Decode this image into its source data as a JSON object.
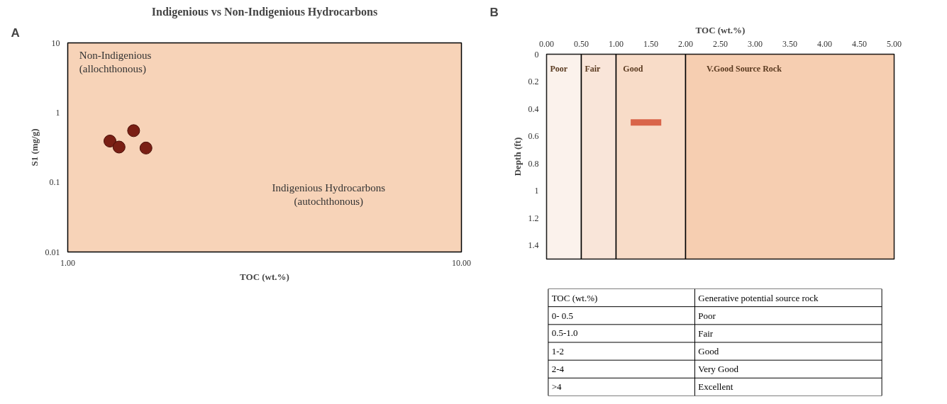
{
  "chart_data": [
    {
      "type": "scatter",
      "title": "Indigenious vs Non-Indigenious Hydrocarbons",
      "xlabel": "TOC (wt.%)",
      "ylabel": "S1 (mg/g)",
      "log": "xy",
      "marker": "circle",
      "grid": false,
      "annotations": [
        "A",
        "Non-Indigenious\n(allochthonous)",
        "Indigenious Hydrocarbons\n(autochthonous)"
      ],
      "xlim": [
        1,
        10
      ],
      "xticks": [
        {
          "value": 1,
          "label": "1.00"
        },
        {
          "value": 10,
          "label": "10.00"
        }
      ],
      "ylim": [
        0.01,
        10
      ],
      "yticks": [
        0.01,
        0.1,
        1,
        10
      ],
      "series": [
        {
          "color": "#7a1f14",
          "x": [
            1.28,
            1.35,
            1.47,
            1.58
          ],
          "values": [
            0.39,
            0.32,
            0.55,
            0.31
          ]
        }
      ]
    },
    {
      "type": "line",
      "xlabel": "TOC (wt.%)",
      "ylabel": "Depth (ft)",
      "grid": false,
      "line_style": "solid",
      "annotations": [
        "B"
      ],
      "xlim": [
        0,
        5
      ],
      "xticks": [
        {
          "value": 0,
          "label": "0.00"
        },
        {
          "value": 0.5,
          "label": "0.50"
        },
        {
          "value": 1,
          "label": "1.00"
        },
        {
          "value": 1.5,
          "label": "1.50"
        },
        {
          "value": 2,
          "label": "2.00"
        },
        {
          "value": 2.5,
          "label": "2.50"
        },
        {
          "value": 3,
          "label": "3.00"
        },
        {
          "value": 3.5,
          "label": "3.50"
        },
        {
          "value": 4,
          "label": "4.00"
        },
        {
          "value": 4.5,
          "label": "4.50"
        },
        {
          "value": 5,
          "label": "5.00"
        }
      ],
      "ylim": [
        1.5,
        0
      ],
      "yticks": [
        0,
        0.2,
        0.4,
        0.6,
        0.8,
        1,
        1.2,
        1.4
      ],
      "bands": [
        {
          "axis": "x",
          "from": 0,
          "to": 0.5,
          "label": "Poor",
          "color": "#fbf2ec"
        },
        {
          "axis": "x",
          "from": 0.5,
          "to": 1,
          "label": "Fair",
          "color": "#f9e5d9"
        },
        {
          "axis": "x",
          "from": 1,
          "to": 2,
          "label": "Good",
          "color": "#f8dcc8"
        },
        {
          "axis": "x",
          "from": 2,
          "to": 5,
          "label": "V.Good  Source Rock",
          "color": "#f6ceb1"
        }
      ],
      "series": [
        {
          "color": "#d9654a",
          "x": [
            1.21,
            1.65
          ],
          "values": [
            0.5,
            0.5
          ]
        }
      ]
    },
    {
      "type": "other",
      "annotations": [
        "TOC (wt.%)",
        "Generative potential source rock",
        "0- 0.5",
        "Poor",
        "0.5-1.0",
        "Fair",
        "1-2",
        "Good",
        "2-4",
        "Very Good",
        ">4",
        "Excellent"
      ]
    }
  ]
}
